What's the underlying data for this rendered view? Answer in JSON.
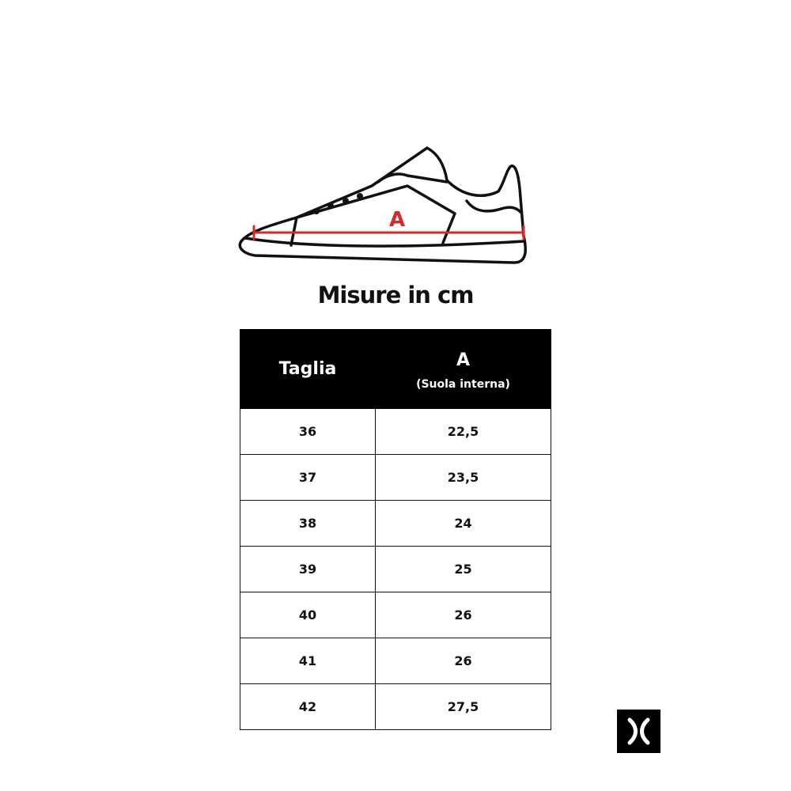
{
  "title": "Misure in cm",
  "diagram": {
    "measure_label": "A",
    "measure_color": "#d62a2a",
    "icon": "sneaker-side-outline"
  },
  "table": {
    "headers": {
      "size": "Taglia",
      "measure": "A",
      "measure_sub": "(Suola interna)"
    },
    "rows": [
      {
        "size": "36",
        "a": "22,5"
      },
      {
        "size": "37",
        "a": "23,5"
      },
      {
        "size": "38",
        "a": "24"
      },
      {
        "size": "39",
        "a": "25"
      },
      {
        "size": "40",
        "a": "26"
      },
      {
        "size": "41",
        "a": "26"
      },
      {
        "size": "42",
        "a": "27,5"
      }
    ]
  },
  "logo": {
    "icon": "x-brand-logo"
  }
}
